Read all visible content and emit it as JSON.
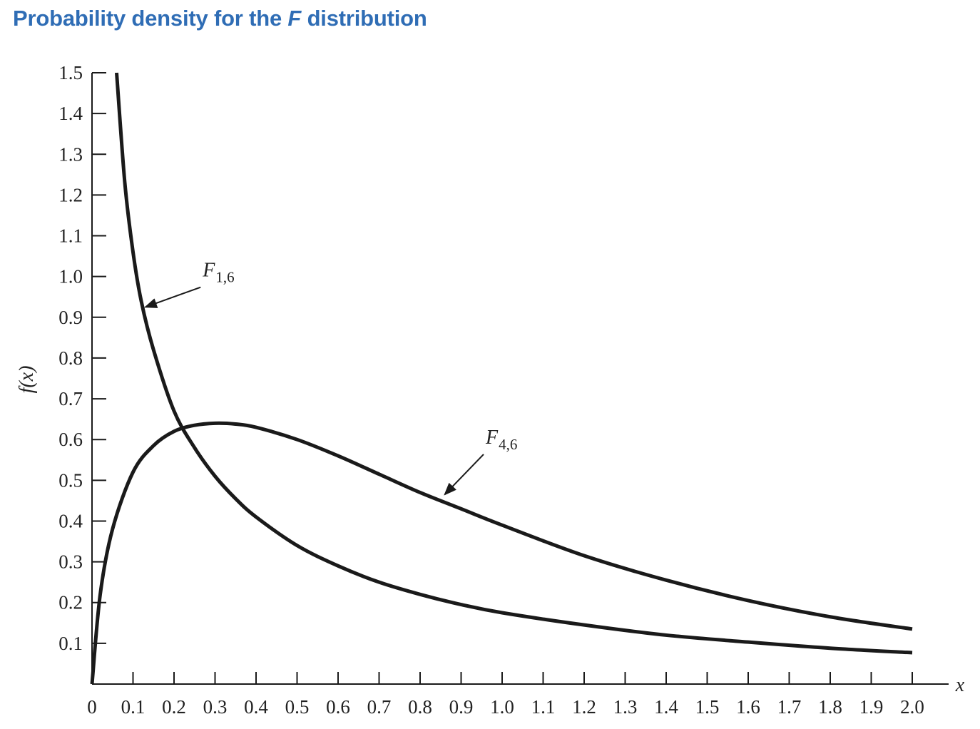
{
  "title": {
    "prefix": "Probability density for the ",
    "emphasis": "F",
    "suffix": " distribution"
  },
  "chart_data": {
    "type": "line",
    "title": "Probability density for the F distribution",
    "xlabel": "x",
    "ylabel": "f(x)",
    "xlim": [
      0,
      2.0
    ],
    "ylim": [
      0,
      1.5
    ],
    "x_ticks": [
      "0",
      "0.1",
      "0.2",
      "0.3",
      "0.4",
      "0.5",
      "0.6",
      "0.7",
      "0.8",
      "0.9",
      "1.0",
      "1.1",
      "1.2",
      "1.3",
      "1.4",
      "1.5",
      "1.6",
      "1.7",
      "1.8",
      "1.9",
      "2.0"
    ],
    "y_ticks": [
      "0.1",
      "0.2",
      "0.3",
      "0.4",
      "0.5",
      "0.6",
      "0.7",
      "0.8",
      "0.9",
      "1.0",
      "1.1",
      "1.2",
      "1.3",
      "1.4",
      "1.5"
    ],
    "grid": false,
    "legend": "none",
    "series": [
      {
        "name": "F1,6",
        "label_main": "F",
        "label_sub": "1,6",
        "x": [
          0.06,
          0.08,
          0.1,
          0.12,
          0.15,
          0.2,
          0.25,
          0.3,
          0.35,
          0.4,
          0.5,
          0.6,
          0.7,
          0.8,
          0.9,
          1.0,
          1.2,
          1.4,
          1.6,
          1.8,
          2.0
        ],
        "y": [
          1.5,
          1.23,
          1.06,
          0.94,
          0.82,
          0.67,
          0.58,
          0.51,
          0.455,
          0.41,
          0.34,
          0.29,
          0.25,
          0.22,
          0.195,
          0.175,
          0.145,
          0.12,
          0.103,
          0.088,
          0.077
        ]
      },
      {
        "name": "F4,6",
        "label_main": "F",
        "label_sub": "4,6",
        "x": [
          0,
          0.02,
          0.05,
          0.1,
          0.15,
          0.2,
          0.25,
          0.3,
          0.35,
          0.4,
          0.5,
          0.6,
          0.7,
          0.8,
          0.9,
          1.0,
          1.2,
          1.4,
          1.6,
          1.8,
          2.0
        ],
        "y": [
          0,
          0.22,
          0.38,
          0.52,
          0.585,
          0.62,
          0.635,
          0.64,
          0.638,
          0.63,
          0.6,
          0.56,
          0.515,
          0.47,
          0.43,
          0.39,
          0.315,
          0.255,
          0.205,
          0.165,
          0.135
        ]
      }
    ],
    "annotations": [
      {
        "series": "F1,6",
        "text_main": "F",
        "text_sub": "1,6",
        "arrow_to": [
          0.13,
          0.925
        ],
        "text_at": [
          0.27,
          1.0
        ]
      },
      {
        "series": "F4,6",
        "text_main": "F",
        "text_sub": "4,6",
        "arrow_to": [
          0.86,
          0.465
        ],
        "text_at": [
          0.96,
          0.59
        ]
      }
    ],
    "colors": {
      "line": "#1a1a1a",
      "title": "#2f6db5"
    }
  }
}
